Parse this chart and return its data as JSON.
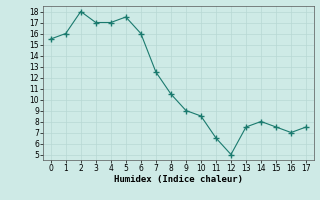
{
  "xlabel": "Humidex (Indice chaleur)",
  "x": [
    0,
    1,
    2,
    3,
    4,
    5,
    6,
    7,
    8,
    9,
    10,
    11,
    12,
    13,
    14,
    15,
    16,
    17
  ],
  "y": [
    15.5,
    16.0,
    18.0,
    17.0,
    17.0,
    17.5,
    16.0,
    12.5,
    10.5,
    9.0,
    8.5,
    6.5,
    5.0,
    7.5,
    8.0,
    7.5,
    7.0,
    7.5
  ],
  "line_color": "#1a7a6e",
  "marker": "+",
  "marker_size": 4,
  "xlim": [
    -0.5,
    17.5
  ],
  "ylim": [
    4.5,
    18.5
  ],
  "yticks": [
    5,
    6,
    7,
    8,
    9,
    10,
    11,
    12,
    13,
    14,
    15,
    16,
    17,
    18
  ],
  "xticks": [
    0,
    1,
    2,
    3,
    4,
    5,
    6,
    7,
    8,
    9,
    10,
    11,
    12,
    13,
    14,
    15,
    16,
    17
  ],
  "bg_color": "#ceeae6",
  "grid_color": "#b8d8d4",
  "tick_fontsize": 5.5,
  "label_fontsize": 6.5
}
